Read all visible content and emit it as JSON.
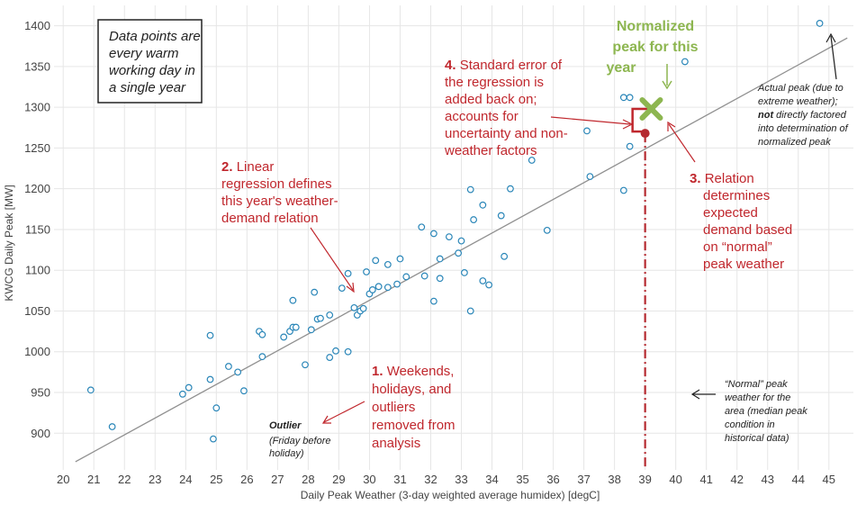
{
  "chart_data": {
    "type": "scatter",
    "xlabel": "Daily Peak Weather (3-day weighted average humidex)  [degC]",
    "ylabel": "KWCG Daily Peak [MW]",
    "xlim": [
      19.7,
      45.8
    ],
    "ylim": [
      855,
      1425
    ],
    "x_ticks": [
      20,
      21,
      22,
      23,
      24,
      25,
      26,
      27,
      28,
      29,
      30,
      31,
      32,
      33,
      34,
      35,
      36,
      37,
      38,
      39,
      40,
      41,
      42,
      43,
      44,
      45
    ],
    "y_ticks": [
      900,
      950,
      1000,
      1050,
      1100,
      1150,
      1200,
      1250,
      1300,
      1350,
      1400
    ],
    "grid": true,
    "points": [
      [
        20.9,
        953
      ],
      [
        21.6,
        908
      ],
      [
        23.9,
        948
      ],
      [
        24.1,
        956
      ],
      [
        24.8,
        966
      ],
      [
        24.8,
        1020
      ],
      [
        24.9,
        893
      ],
      [
        25.0,
        931
      ],
      [
        25.4,
        982
      ],
      [
        25.7,
        975
      ],
      [
        25.9,
        952
      ],
      [
        26.4,
        1025
      ],
      [
        26.5,
        1021
      ],
      [
        26.5,
        994
      ],
      [
        27.2,
        1018
      ],
      [
        27.4,
        1025
      ],
      [
        27.5,
        1030
      ],
      [
        27.6,
        1030
      ],
      [
        27.5,
        1063
      ],
      [
        27.9,
        984
      ],
      [
        28.1,
        1027
      ],
      [
        28.2,
        1073
      ],
      [
        28.3,
        1040
      ],
      [
        28.4,
        1041
      ],
      [
        28.7,
        993
      ],
      [
        28.7,
        1045
      ],
      [
        28.9,
        1001
      ],
      [
        29.1,
        1078
      ],
      [
        29.3,
        1000
      ],
      [
        29.3,
        1096
      ],
      [
        29.5,
        1054
      ],
      [
        29.6,
        1045
      ],
      [
        29.7,
        1050
      ],
      [
        29.8,
        1053
      ],
      [
        29.9,
        1098
      ],
      [
        30.0,
        1071
      ],
      [
        30.1,
        1076
      ],
      [
        30.2,
        1112
      ],
      [
        30.3,
        1080
      ],
      [
        30.6,
        1079
      ],
      [
        30.6,
        1107
      ],
      [
        30.9,
        1083
      ],
      [
        31.0,
        1114
      ],
      [
        31.2,
        1092
      ],
      [
        31.7,
        1153
      ],
      [
        31.8,
        1093
      ],
      [
        32.1,
        1062
      ],
      [
        32.1,
        1145
      ],
      [
        32.3,
        1114
      ],
      [
        32.3,
        1090
      ],
      [
        32.6,
        1141
      ],
      [
        32.9,
        1121
      ],
      [
        33.0,
        1136
      ],
      [
        33.1,
        1097
      ],
      [
        33.3,
        1050
      ],
      [
        33.3,
        1199
      ],
      [
        33.4,
        1162
      ],
      [
        33.7,
        1087
      ],
      [
        33.7,
        1180
      ],
      [
        33.9,
        1082
      ],
      [
        34.3,
        1167
      ],
      [
        34.4,
        1117
      ],
      [
        34.6,
        1200
      ],
      [
        35.3,
        1235
      ],
      [
        35.8,
        1149
      ],
      [
        37.1,
        1271
      ],
      [
        37.2,
        1215
      ],
      [
        38.3,
        1198
      ],
      [
        38.3,
        1312
      ],
      [
        38.5,
        1252
      ],
      [
        38.5,
        1312
      ],
      [
        40.3,
        1356
      ],
      [
        44.7,
        1403
      ]
    ],
    "regression_line": {
      "x": [
        20.4,
        45.6
      ],
      "y": [
        865,
        1385
      ]
    },
    "expected_point": {
      "x": 39.0,
      "y": 1268
    },
    "normalized_peak": {
      "x": 39.2,
      "y": 1298
    },
    "normal_weather_x": 39.0,
    "annotations": {
      "box": [
        "Data points are",
        "every warm",
        "working day in",
        "a single year"
      ],
      "normalized": [
        "Normalized",
        "peak for this",
        "year"
      ],
      "ann4_num": "4.",
      "ann4": [
        "Standard error of",
        "the  regression is",
        "added back on;",
        "accounts for",
        "uncertainty and non-",
        "weather factors"
      ],
      "ann2_num": "2.",
      "ann2": [
        "Linear",
        "regression defines",
        "this year's weather-",
        "demand relation"
      ],
      "ann3_num": "3.",
      "ann3": [
        "Relation",
        "determines",
        "expected",
        "demand based",
        "on “normal”",
        "peak weather"
      ],
      "ann1_num": "1.",
      "ann1": [
        "Weekends,",
        "holidays, and",
        "outliers",
        "removed from",
        "analysis"
      ],
      "actual": [
        "Actual peak (due to",
        "extreme weather);",
        "not",
        "directly factored",
        "into determination of",
        "normalized peak"
      ],
      "outlier_title": "Outlier",
      "outlier": [
        "(Friday before",
        "holiday)"
      ],
      "normal_note": [
        "“Normal” peak",
        "weather for the",
        "area (median peak",
        "condition in",
        "historical data)"
      ]
    },
    "colors": {
      "point": "#2a86b8",
      "regression": "#909090",
      "grid": "#e6e6e6",
      "red": "#c0272d",
      "dashed": "#b52a30",
      "green": "#8db650"
    }
  }
}
